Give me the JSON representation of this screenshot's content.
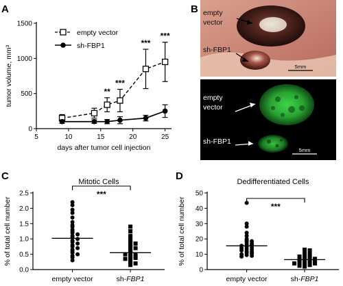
{
  "panels": {
    "A": {
      "letter": "A",
      "legend": [
        "empty vector",
        "sh-FBP1"
      ],
      "chart_data": {
        "type": "line",
        "ylabel": "tumor volume, mm³",
        "xlabel": "days after tumor cell injection",
        "xlim": [
          5,
          26
        ],
        "ylim": [
          0,
          1500
        ],
        "xticks": [
          5,
          10,
          15,
          20,
          25
        ],
        "yticks": [
          0,
          500,
          1000,
          1500
        ],
        "x": [
          9,
          14,
          16,
          18,
          22,
          25
        ],
        "series": [
          {
            "name": "empty vector",
            "values": [
              150,
              220,
              340,
              400,
              850,
              950
            ],
            "errors": [
              50,
              70,
              100,
              160,
              280,
              280
            ]
          },
          {
            "name": "sh-FBP1",
            "values": [
              100,
              100,
              100,
              120,
              150,
              250
            ],
            "errors": [
              25,
              25,
              30,
              50,
              40,
              90
            ]
          }
        ],
        "annotations": [
          {
            "x": 16,
            "text": "**"
          },
          {
            "x": 18,
            "text": "***"
          },
          {
            "x": 22,
            "text": "***"
          },
          {
            "x": 25,
            "text": "***"
          }
        ]
      }
    },
    "B": {
      "letter": "B",
      "top_labels": [
        "empty",
        "vector",
        "sh-FBP1"
      ],
      "bottom_labels": [
        "empty",
        "vector",
        "sh-FBP1"
      ],
      "scale_bar": "5mm"
    },
    "C": {
      "letter": "C",
      "chart_data": {
        "type": "scatter",
        "title": "Mitotic Cells",
        "ylabel": "% of total cell number",
        "categories": [
          "empty vector",
          "sh-FBP1"
        ],
        "ylim": [
          0,
          2.5
        ],
        "yticks": [
          0.0,
          0.5,
          1.0,
          1.5,
          2.0,
          2.5
        ],
        "significance": "***",
        "series": [
          {
            "name": "empty vector",
            "marker": "circle",
            "mean": 1.02,
            "values": [
              2.2,
              2.1,
              1.95,
              1.85,
              1.7,
              1.55,
              1.45,
              1.4,
              1.3,
              1.25,
              1.2,
              1.15,
              1.1,
              1.05,
              1.0,
              0.95,
              0.9,
              0.85,
              0.8,
              0.75,
              0.7,
              0.65,
              0.6,
              0.55,
              0.5,
              0.45,
              0.4,
              0.3
            ]
          },
          {
            "name": "sh-FBP1",
            "marker": "square",
            "mean": 0.55,
            "values": [
              1.4,
              1.25,
              1.1,
              1.05,
              0.95,
              0.9,
              0.85,
              0.8,
              0.75,
              0.7,
              0.65,
              0.6,
              0.55,
              0.5,
              0.5,
              0.45,
              0.42,
              0.4,
              0.38,
              0.35,
              0.3,
              0.25,
              0.2,
              0.15
            ]
          }
        ]
      }
    },
    "D": {
      "letter": "D",
      "chart_data": {
        "type": "scatter",
        "title": "Dedifferentiated Cells",
        "ylabel": "% of total cell number",
        "categories": [
          "empty vector",
          "sh-FBP1"
        ],
        "ylim": [
          0,
          50
        ],
        "yticks": [
          0,
          10,
          20,
          30,
          40,
          50
        ],
        "significance": "***",
        "series": [
          {
            "name": "empty vector",
            "marker": "circle",
            "mean": 15.5,
            "values": [
              43.5,
              30,
              28,
              24,
              22,
              20,
              19,
              18.5,
              18,
              17,
              16.5,
              16,
              15.5,
              15,
              14.5,
              14,
              13.5,
              13,
              12.5,
              12,
              11.5,
              11,
              10.5,
              10,
              9.5,
              9,
              8.5
            ]
          },
          {
            "name": "sh-FBP1",
            "marker": "square",
            "mean": 6.5,
            "values": [
              13,
              12.5,
              11,
              10,
              9.5,
              9,
              8.5,
              8,
              7.5,
              7,
              7,
              6.5,
              6,
              6,
              5.5,
              5,
              5,
              4.5,
              4,
              4,
              3.5,
              3,
              2.5,
              2
            ]
          }
        ]
      }
    }
  }
}
